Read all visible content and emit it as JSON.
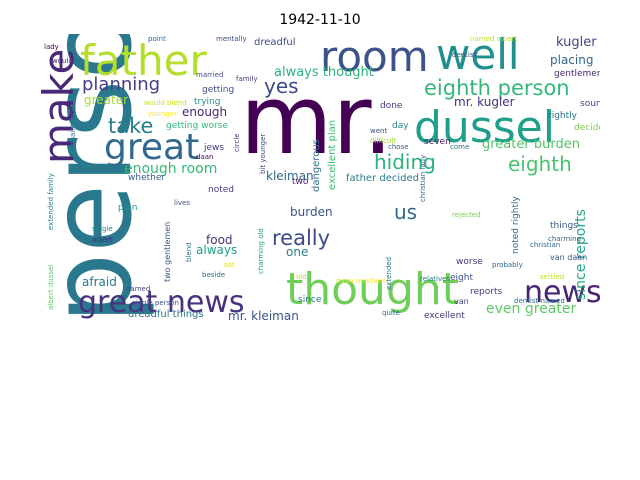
{
  "title": "1942-11-10",
  "words": [
    {
      "text": "person",
      "color": "#2a788e"
    },
    {
      "text": "mr.",
      "color": "#440154"
    },
    {
      "text": "room",
      "color": "#3b528b"
    },
    {
      "text": "father",
      "color": "#b5de2b"
    },
    {
      "text": "well",
      "color": "#21908d"
    },
    {
      "text": "make",
      "color": "#482878"
    },
    {
      "text": "dussel",
      "color": "#1f9e89"
    },
    {
      "text": "thought",
      "color": "#6ece58"
    },
    {
      "text": "great",
      "color": "#31688e"
    },
    {
      "text": "great news",
      "color": "#46327e"
    },
    {
      "text": "news",
      "color": "#482475"
    },
    {
      "text": "eighth person",
      "color": "#35b779"
    },
    {
      "text": "planning",
      "color": "#433e85"
    },
    {
      "text": "yes",
      "color": "#3e4989"
    },
    {
      "text": "take",
      "color": "#27808e"
    },
    {
      "text": "hiding",
      "color": "#2db27d"
    },
    {
      "text": "eighth",
      "color": "#4ac16d"
    },
    {
      "text": "really",
      "color": "#3e4a89"
    },
    {
      "text": "us",
      "color": "#30678d"
    },
    {
      "text": "always thought",
      "color": "#2eb37c"
    },
    {
      "text": "kugler",
      "color": "#404688"
    },
    {
      "text": "placing",
      "color": "#31688e"
    },
    {
      "text": "greater burden",
      "color": "#52c569"
    },
    {
      "text": "since reports",
      "color": "#22a785"
    },
    {
      "text": "enough room",
      "color": "#37b878"
    },
    {
      "text": "even greater",
      "color": "#5ec962"
    },
    {
      "text": "mr. kugler",
      "color": "#472d7b"
    },
    {
      "text": "afraid",
      "color": "#2a788e"
    },
    {
      "text": "food",
      "color": "#46337e"
    },
    {
      "text": "always",
      "color": "#1fa088"
    },
    {
      "text": "kleiman",
      "color": "#31688e"
    },
    {
      "text": "mr. kleiman",
      "color": "#3b528b"
    },
    {
      "text": "burden",
      "color": "#3b528b"
    },
    {
      "text": "one",
      "color": "#26828e"
    },
    {
      "text": "enough",
      "color": "#482878"
    },
    {
      "text": "greater",
      "color": "#a5db36"
    },
    {
      "text": "getting worse",
      "color": "#35b779"
    },
    {
      "text": "dangerous",
      "color": "#2c728e"
    },
    {
      "text": "excellent plan",
      "color": "#3fbc73"
    },
    {
      "text": "father decided",
      "color": "#2a788e"
    },
    {
      "text": "dreadful",
      "color": "#3e4989"
    },
    {
      "text": "gentlemen",
      "color": "#482878"
    },
    {
      "text": "dreadful things",
      "color": "#2a788e"
    },
    {
      "text": "reports",
      "color": "#433e85"
    },
    {
      "text": "excellent",
      "color": "#46327e"
    },
    {
      "text": "things",
      "color": "#38588c"
    },
    {
      "text": "worse",
      "color": "#453781"
    },
    {
      "text": "noted rightly",
      "color": "#31688e"
    },
    {
      "text": "decided",
      "color": "#7ad151"
    },
    {
      "text": "rightly",
      "color": "#2c728e"
    },
    {
      "text": "sound",
      "color": "#3e4a89"
    },
    {
      "text": "done",
      "color": "#443983"
    },
    {
      "text": "day",
      "color": "#25858e"
    },
    {
      "text": "seven",
      "color": "#48186a"
    },
    {
      "text": "noted",
      "color": "#424086"
    },
    {
      "text": "whether",
      "color": "#365c8d"
    },
    {
      "text": "plan",
      "color": "#1f968b"
    },
    {
      "text": "two",
      "color": "#481f70"
    },
    {
      "text": "eight",
      "color": "#3b528b"
    },
    {
      "text": "since",
      "color": "#2c728e"
    },
    {
      "text": "jews",
      "color": "#443a83"
    },
    {
      "text": "getting",
      "color": "#3e4989"
    },
    {
      "text": "trying",
      "color": "#21918c"
    },
    {
      "text": "van",
      "color": "#3f4788"
    },
    {
      "text": "van daan",
      "color": "#3b528b"
    },
    {
      "text": "probably",
      "color": "#31688e"
    },
    {
      "text": "charming",
      "color": "#31688e"
    },
    {
      "text": "named",
      "color": "#404688"
    },
    {
      "text": "relatives",
      "color": "#26828e"
    },
    {
      "text": "dentist named",
      "color": "#2e6e8e"
    },
    {
      "text": "quite",
      "color": "#2c728e"
    },
    {
      "text": "lives",
      "color": "#3b528b"
    },
    {
      "text": "single",
      "color": "#26828e"
    },
    {
      "text": "albert",
      "color": "#482878"
    },
    {
      "text": "single person",
      "color": "#38588c"
    },
    {
      "text": "christian",
      "color": "#306a8e"
    },
    {
      "text": "rejected",
      "color": "#75d054"
    },
    {
      "text": "settled",
      "color": "#bddf26"
    },
    {
      "text": "lady",
      "color": "#440154"
    },
    {
      "text": "would",
      "color": "#482878"
    },
    {
      "text": "point",
      "color": "#31688e"
    },
    {
      "text": "mentally",
      "color": "#3b528b"
    },
    {
      "text": "named albert",
      "color": "#c2df23"
    },
    {
      "text": "married",
      "color": "#3e4989"
    },
    {
      "text": "family",
      "color": "#424086"
    },
    {
      "text": "would blend",
      "color": "#d2e21b"
    },
    {
      "text": "younger",
      "color": "#fde725"
    },
    {
      "text": "acquaintances",
      "color": "#287c8e"
    },
    {
      "text": "chose",
      "color": "#38588c"
    },
    {
      "text": "come",
      "color": "#2c728e"
    },
    {
      "text": "went",
      "color": "#3b528b"
    },
    {
      "text": "difficult",
      "color": "#a0da39"
    },
    {
      "text": "beside",
      "color": "#31688e"
    },
    {
      "text": "circle",
      "color": "#3e4989"
    },
    {
      "text": "daan",
      "color": "#440154"
    },
    {
      "text": "blend",
      "color": "#2c728e"
    },
    {
      "text": "sat",
      "color": "#d8e219"
    },
    {
      "text": "extended family",
      "color": "#26828e"
    },
    {
      "text": "albert dussel",
      "color": "#5ec962"
    },
    {
      "text": "two gentlemen",
      "color": "#3b528b"
    },
    {
      "text": "bit younger",
      "color": "#3e4989"
    },
    {
      "text": "charming old",
      "color": "#1f9e89"
    },
    {
      "text": "christian lady",
      "color": "#33638d"
    },
    {
      "text": "daan relatives",
      "color": "#fde725"
    },
    {
      "text": "extended",
      "color": "#2a788e"
    },
    {
      "text": "dentist",
      "color": "#3b528b"
    },
    {
      "text": "old",
      "color": "#c8e020"
    }
  ]
}
